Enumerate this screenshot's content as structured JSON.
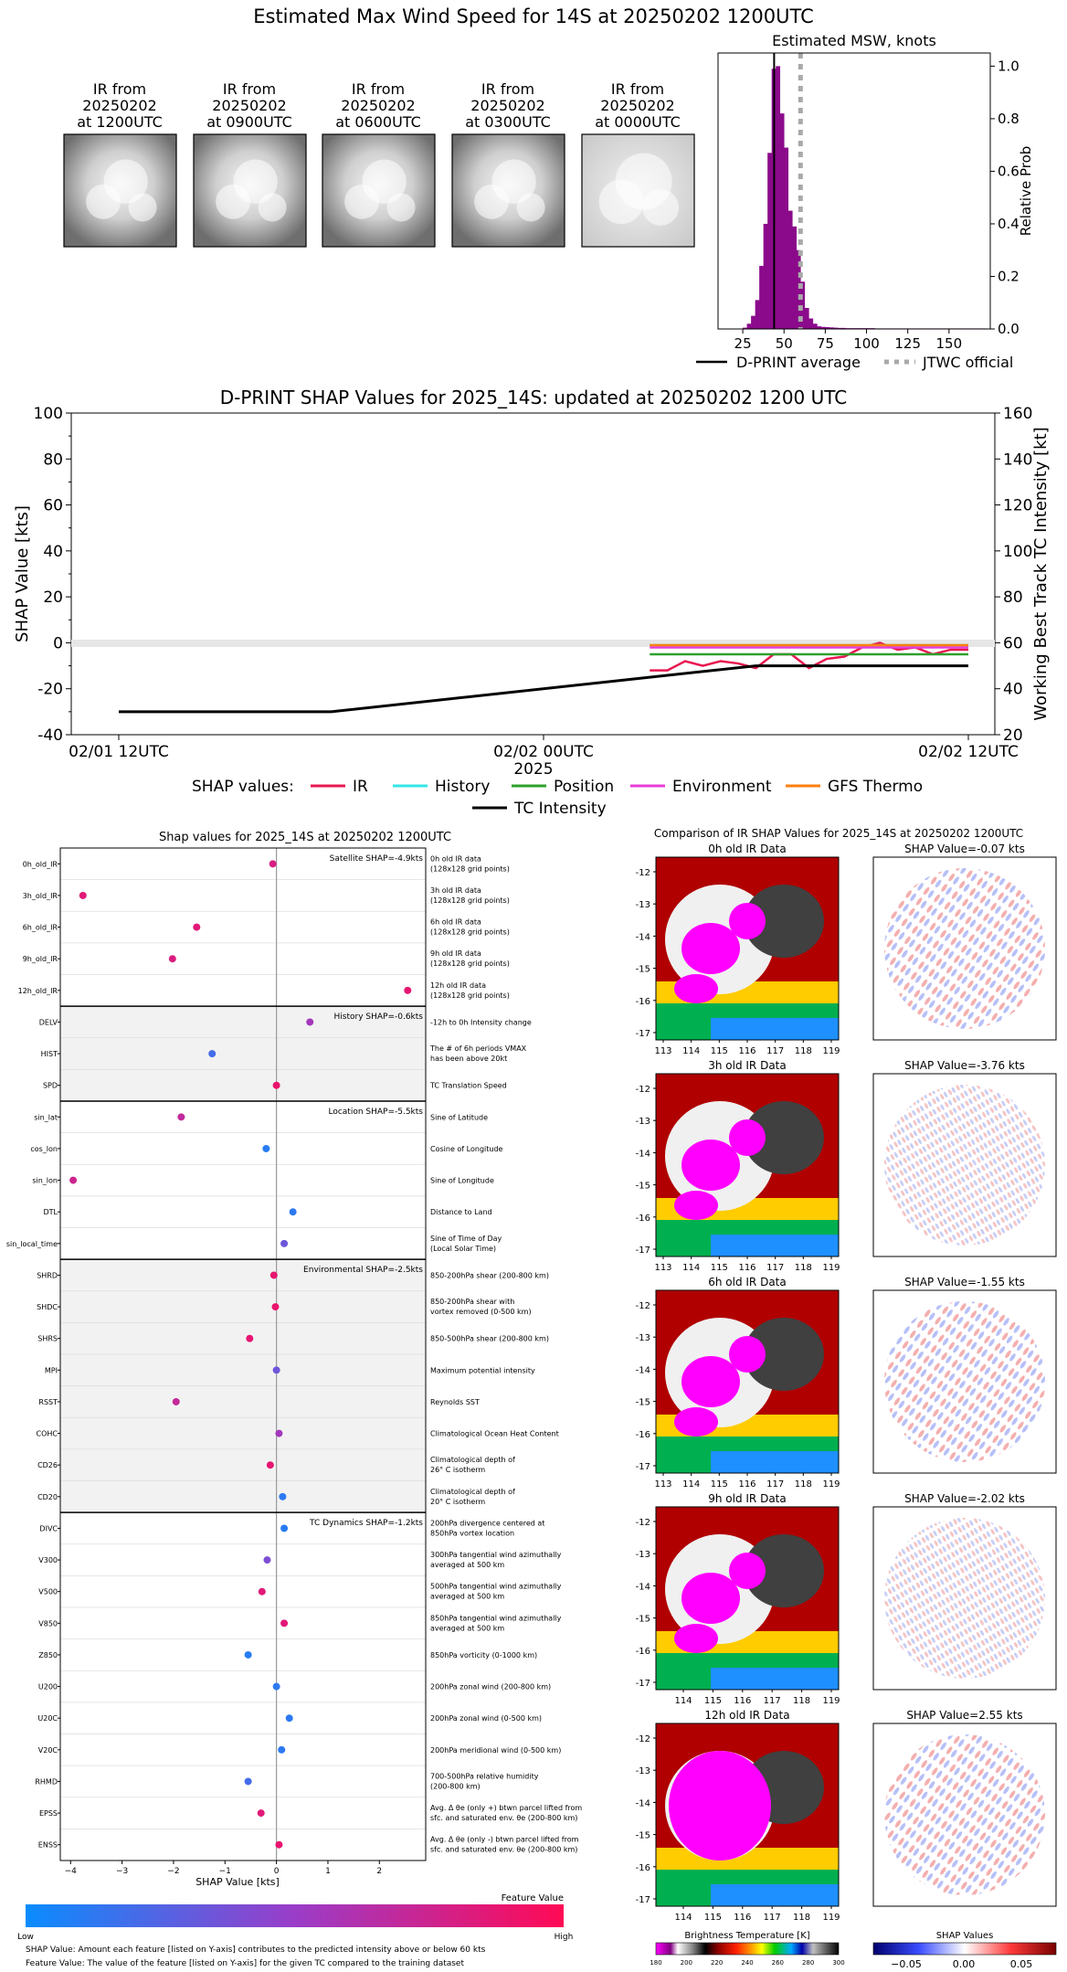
{
  "page_title": "Estimated Max Wind Speed for 14S at 20250202 1200UTC",
  "ir_thumbs": [
    {
      "l1": "IR from",
      "l2": "20250202",
      "l3": "at 1200UTC"
    },
    {
      "l1": "IR from",
      "l2": "20250202",
      "l3": "at 0900UTC"
    },
    {
      "l1": "IR from",
      "l2": "20250202",
      "l3": "at 0600UTC"
    },
    {
      "l1": "IR from",
      "l2": "20250202",
      "l3": "at 0300UTC"
    },
    {
      "l1": "IR from",
      "l2": "20250202",
      "l3": "at 0000UTC"
    }
  ],
  "colors": {
    "hist": "#8b0a8b",
    "ir": "#e8174f",
    "history": "#35e6e6",
    "position": "#2ca02c",
    "environment": "#e93cd8",
    "gfs": "#ff7f0e",
    "intensity": "#000000",
    "jtwc": "#a9a9a9",
    "dot_low": "#1e88ff",
    "dot_high": "#ff1f6a"
  },
  "chart_data": [
    {
      "type": "bar",
      "title": "Estimated MSW, knots",
      "ylabel": "Relative Prob",
      "xlim": [
        10,
        175
      ],
      "ylim": [
        0,
        1.05
      ],
      "xticks": [
        "25",
        "50",
        "75",
        "100",
        "125",
        "150"
      ],
      "yticks": [
        "0.0",
        "0.2",
        "0.4",
        "0.6",
        "0.8",
        "1.0"
      ],
      "bin_width": 2.5,
      "bins_x": [
        25,
        27.5,
        30,
        32.5,
        35,
        37.5,
        40,
        42.5,
        45,
        47.5,
        50,
        52.5,
        55,
        57.5,
        60,
        62.5,
        65,
        67.5,
        70,
        72.5,
        75,
        77.5,
        80,
        82.5,
        85,
        87.5,
        90,
        92.5,
        95,
        97.5,
        100,
        102.5,
        105,
        107.5,
        110,
        112.5,
        115,
        117.5,
        120,
        122.5,
        125,
        127.5,
        130,
        132.5,
        135,
        137.5,
        140,
        142.5,
        145,
        147.5,
        150,
        152.5,
        155,
        157.5,
        160,
        162.5,
        165,
        167.5,
        170
      ],
      "bins_y": [
        0.005,
        0.02,
        0.05,
        0.11,
        0.24,
        0.4,
        0.67,
        0.99,
        1.0,
        0.82,
        0.69,
        0.45,
        0.39,
        0.3,
        0.18,
        0.08,
        0.04,
        0.02,
        0.01,
        0.008,
        0.007,
        0.006,
        0.005,
        0.004,
        0.004,
        0.003,
        0.003,
        0.003,
        0.003,
        0.003,
        0.003,
        0.003,
        0.002,
        0.002,
        0.002,
        0.002,
        0.002,
        0.002,
        0.002,
        0.002,
        0.002,
        0.002,
        0.002,
        0.002,
        0.002,
        0.002,
        0.002,
        0.002,
        0.002,
        0.002,
        0.002,
        0.002,
        0.002,
        0.002,
        0.002,
        0.002,
        0.002,
        0.002,
        0.002
      ],
      "dprint_average": 44,
      "jtwc_official": 60,
      "legend": [
        "D-PRINT average",
        "JTWC official"
      ]
    },
    {
      "type": "line",
      "title": "D-PRINT SHAP Values for 2025_14S: updated at 20250202 1200 UTC",
      "ylabel": "SHAP Value [kts]",
      "y2label": "Working Best Track TC Intensity [kt]",
      "xlabel": "2025",
      "ylim": [
        -40,
        100
      ],
      "y2lim": [
        20,
        160
      ],
      "yticks": [
        "100",
        "80",
        "60",
        "40",
        "20",
        "0",
        "-20",
        "-40"
      ],
      "y2ticks": [
        "160",
        "140",
        "120",
        "100",
        "80",
        "60",
        "40",
        "20"
      ],
      "xticks": [
        "02/01 12UTC",
        "02/02 00UTC",
        "02/02 12UTC"
      ],
      "x_hours": [
        0,
        12,
        24
      ],
      "legend_prefix": "SHAP values:",
      "series": [
        {
          "name": "IR",
          "key": "ir",
          "x": [
            15,
            15.5,
            16,
            16.5,
            17,
            17.5,
            18,
            18.5,
            19,
            19.5,
            20,
            20.5,
            21,
            21.5,
            22,
            22.5,
            23,
            23.5,
            24
          ],
          "y": [
            -12,
            -12,
            -8,
            -10,
            -8,
            -9,
            -11,
            -5,
            -5,
            -11,
            -7,
            -6,
            -2,
            0,
            -3,
            -2,
            -5,
            -3,
            -3
          ]
        },
        {
          "name": "History",
          "key": "history",
          "x": [
            15,
            24
          ],
          "y": [
            -1,
            -1
          ]
        },
        {
          "name": "Position",
          "key": "position",
          "x": [
            15,
            16,
            17,
            18,
            19,
            20,
            21,
            22,
            23,
            24
          ],
          "y": [
            -5,
            -5,
            -5,
            -5,
            -5,
            -5,
            -5,
            -5,
            -5,
            -5
          ]
        },
        {
          "name": "Environment",
          "key": "environment",
          "x": [
            15,
            16,
            17,
            18,
            19,
            20,
            21,
            22,
            23,
            24
          ],
          "y": [
            -2,
            -2,
            -2,
            -2,
            -2,
            -2,
            -2,
            -2,
            -2,
            -2
          ]
        },
        {
          "name": "GFS Thermo",
          "key": "gfs",
          "x": [
            15,
            16,
            17,
            18,
            19,
            20,
            21,
            22,
            23,
            24
          ],
          "y": [
            -1,
            -1,
            -1,
            -1,
            -1,
            -1,
            -1,
            -1,
            -1,
            -1
          ]
        },
        {
          "name": "TC Intensity",
          "key": "intensity",
          "axis": "y2",
          "x": [
            0,
            6,
            15,
            18,
            24
          ],
          "y": [
            30,
            30,
            45,
            50,
            50
          ]
        }
      ]
    },
    {
      "type": "scatter",
      "title": "Shap values for 2025_14S at 20250202 1200UTC",
      "xlabel": "SHAP Value [kts]",
      "xlim": [
        -4.2,
        2.9
      ],
      "xticks": [
        -4,
        -3,
        -2,
        -1,
        0,
        1,
        2
      ],
      "colorbar_title": "Feature Value",
      "colorbar_low": "Low",
      "colorbar_high": "High",
      "groups": [
        {
          "label": "Satellite SHAP=-4.9kts",
          "shade": false,
          "start": 0,
          "end": 5
        },
        {
          "label": "History SHAP=-0.6kts",
          "shade": true,
          "start": 5,
          "end": 8
        },
        {
          "label": "Location SHAP=-5.5kts",
          "shade": false,
          "start": 8,
          "end": 13
        },
        {
          "label": "Environmental SHAP=-2.5kts",
          "shade": true,
          "start": 13,
          "end": 21
        },
        {
          "label": "TC Dynamics SHAP=-1.2kts",
          "shade": false,
          "start": 21,
          "end": 32
        }
      ],
      "features": [
        {
          "name": "0h_old_IR",
          "desc": [
            "0h old IR data",
            "(128x128 grid points)"
          ],
          "shap": -0.07,
          "fv": 0.8
        },
        {
          "name": "3h_old_IR",
          "desc": [
            "3h old IR data",
            "(128x128 grid points)"
          ],
          "shap": -3.76,
          "fv": 0.85
        },
        {
          "name": "6h_old_IR",
          "desc": [
            "6h old IR data",
            "(128x128 grid points)"
          ],
          "shap": -1.55,
          "fv": 0.85
        },
        {
          "name": "9h_old_IR",
          "desc": [
            "9h old IR data",
            "(128x128 grid points)"
          ],
          "shap": -2.02,
          "fv": 0.82
        },
        {
          "name": "12h_old_IR",
          "desc": [
            "12h old IR data",
            "(128x128 grid points)"
          ],
          "shap": 2.55,
          "fv": 0.88
        },
        {
          "name": "DELV",
          "desc": [
            "-12h to 0h Intensity change"
          ],
          "shap": 0.65,
          "fv": 0.55
        },
        {
          "name": "HIST",
          "desc": [
            "The # of 6h periods VMAX",
            "has been above 20kt"
          ],
          "shap": -1.25,
          "fv": 0.2
        },
        {
          "name": "SPD",
          "desc": [
            "TC Translation Speed"
          ],
          "shap": 0.0,
          "fv": 0.9
        },
        {
          "name": "sin_lat",
          "desc": [
            "Sine of Latitude"
          ],
          "shap": -1.85,
          "fv": 0.7
        },
        {
          "name": "cos_lon",
          "desc": [
            "Cosine of Longitude"
          ],
          "shap": -0.2,
          "fv": 0.1
        },
        {
          "name": "sin_lon",
          "desc": [
            "Sine of Longitude"
          ],
          "shap": -3.95,
          "fv": 0.75
        },
        {
          "name": "DTL",
          "desc": [
            "Distance to Land"
          ],
          "shap": 0.32,
          "fv": 0.12
        },
        {
          "name": "sin_local_time",
          "desc": [
            "Sine of Time of Day",
            "(Local Solar Time)"
          ],
          "shap": 0.15,
          "fv": 0.35
        },
        {
          "name": "SHRD",
          "desc": [
            "850-200hPa shear (200-800 km)"
          ],
          "shap": -0.05,
          "fv": 0.88
        },
        {
          "name": "SHDC",
          "desc": [
            "850-200hPa shear with",
            "vortex removed (0-500 km)"
          ],
          "shap": -0.02,
          "fv": 0.9
        },
        {
          "name": "SHRS",
          "desc": [
            "850-500hPa shear (200-800 km)"
          ],
          "shap": -0.52,
          "fv": 0.88
        },
        {
          "name": "MPI",
          "desc": [
            "Maximum potential intensity"
          ],
          "shap": 0.0,
          "fv": 0.35
        },
        {
          "name": "RSST",
          "desc": [
            "Reynolds SST"
          ],
          "shap": -1.95,
          "fv": 0.7
        },
        {
          "name": "COHC",
          "desc": [
            "Climatological Ocean Heat Content"
          ],
          "shap": 0.05,
          "fv": 0.55
        },
        {
          "name": "CD26",
          "desc": [
            "Climatological depth of",
            "26° C isotherm"
          ],
          "shap": -0.12,
          "fv": 0.88
        },
        {
          "name": "CD20",
          "desc": [
            "Climatological depth of",
            "20° C isotherm"
          ],
          "shap": 0.12,
          "fv": 0.12
        },
        {
          "name": "DIVC",
          "desc": [
            "200hPa divergence centered at",
            "850hPa vortex location"
          ],
          "shap": 0.15,
          "fv": 0.1
        },
        {
          "name": "V300",
          "desc": [
            "300hPa tangential wind azimuthally",
            "averaged at 500 km"
          ],
          "shap": -0.18,
          "fv": 0.4
        },
        {
          "name": "V500",
          "desc": [
            "500hPa tangential wind azimuthally",
            "averaged at 500 km"
          ],
          "shap": -0.28,
          "fv": 0.85
        },
        {
          "name": "V850",
          "desc": [
            "850hPa tangential wind azimuthally",
            "averaged at 500 km"
          ],
          "shap": 0.15,
          "fv": 0.85
        },
        {
          "name": "Z850",
          "desc": [
            "850hPa vorticity (0-1000 km)"
          ],
          "shap": -0.55,
          "fv": 0.1
        },
        {
          "name": "U200",
          "desc": [
            "200hPa zonal wind (200-800 km)"
          ],
          "shap": 0.0,
          "fv": 0.12
        },
        {
          "name": "U20C",
          "desc": [
            "200hPa zonal wind (0-500 km)"
          ],
          "shap": 0.25,
          "fv": 0.12
        },
        {
          "name": "V20C",
          "desc": [
            "200hPa meridional wind (0-500 km)"
          ],
          "shap": 0.1,
          "fv": 0.12
        },
        {
          "name": "RHMD",
          "desc": [
            "700-500hPa relative humidity",
            "(200-800 km)"
          ],
          "shap": -0.55,
          "fv": 0.2
        },
        {
          "name": "EPSS",
          "desc": [
            "Avg. Δ θe (only +) btwn parcel lifted from",
            "sfc. and saturated env. θe (200-800 km)"
          ],
          "shap": -0.3,
          "fv": 0.85
        },
        {
          "name": "ENSS",
          "desc": [
            "Avg. Δ θe (only -) btwn parcel lifted from",
            "sfc. and saturated env. θe (200-800 km)"
          ],
          "shap": 0.05,
          "fv": 0.88
        }
      ]
    },
    {
      "type": "heatmap",
      "title": "Comparison of IR SHAP Values for 2025_14S at 20250202 1200UTC",
      "yticks": [
        "-12",
        "-13",
        "-14",
        "-15",
        "-16",
        "-17"
      ],
      "xticks_a": [
        "113",
        "114",
        "115",
        "116",
        "117",
        "118",
        "119"
      ],
      "xticks_b": [
        "114",
        "115",
        "116",
        "117",
        "118",
        "119"
      ],
      "rows": [
        {
          "ir_title": "0h old IR Data",
          "shap_title": "SHAP Value=-0.07 kts",
          "xt": "a"
        },
        {
          "ir_title": "3h old IR Data",
          "shap_title": "SHAP Value=-3.76 kts",
          "xt": "a"
        },
        {
          "ir_title": "6h old IR Data",
          "shap_title": "SHAP Value=-1.55 kts",
          "xt": "a"
        },
        {
          "ir_title": "9h old IR Data",
          "shap_title": "SHAP Value=-2.02 kts",
          "xt": "b"
        },
        {
          "ir_title": "12h old IR Data",
          "shap_title": "SHAP Value=2.55 kts",
          "xt": "b"
        }
      ],
      "bt_colorbar_title": "Brightness Temperature [K]",
      "bt_ticks": [
        "180",
        "200",
        "220",
        "240",
        "260",
        "280",
        "300"
      ],
      "shap_colorbar_title": "SHAP Values",
      "shap_ticks": [
        "−0.05",
        "0.00",
        "0.05"
      ]
    }
  ],
  "footer_notes": [
    "SHAP Value: Amount each feature [listed on Y-axis] contributes to the predicted intensity above or below 60 kts",
    "Feature Value: The value of the feature [listed on Y-axis] for the given TC compared to the training dataset"
  ]
}
